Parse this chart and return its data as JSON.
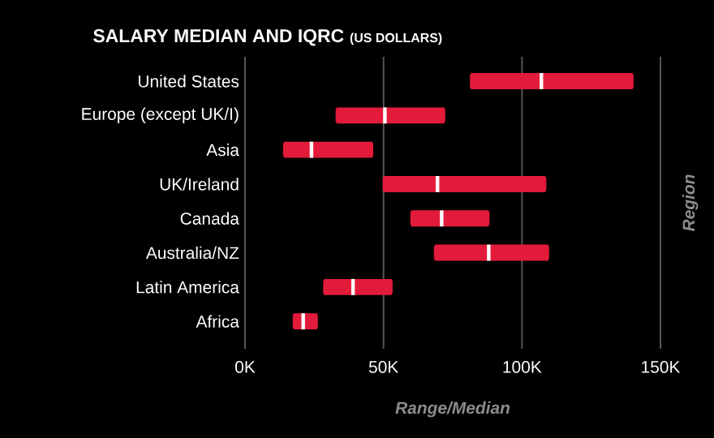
{
  "chart_data": {
    "type": "box",
    "orientation": "horizontal",
    "title": "SALARY MEDIAN AND IQRC",
    "subtitle": "(US DOLLARS)",
    "xlabel": "Range/Median",
    "ylabel": "Region",
    "grid": "x",
    "color": "#e31b3b",
    "categories": [
      "United States",
      "Europe (except UK/I)",
      "Asia",
      "UK/Ireland",
      "Canada",
      "Australia/NZ",
      "Latin America",
      "Africa"
    ],
    "boxes": [
      {
        "low": 81500,
        "q1": 81500,
        "median": 107000,
        "q3": 140000,
        "high": 140000
      },
      {
        "low": 33000,
        "q1": 33000,
        "median": 50500,
        "q3": 72000,
        "high": 72000
      },
      {
        "low": 14000,
        "q1": 14000,
        "median": 24000,
        "q3": 46000,
        "high": 46000
      },
      {
        "low": 50000,
        "q1": 50000,
        "median": 69500,
        "q3": 108500,
        "high": 108500
      },
      {
        "low": 60000,
        "q1": 60000,
        "median": 71000,
        "q3": 88000,
        "high": 88000
      },
      {
        "low": 68500,
        "q1": 68500,
        "median": 88000,
        "q3": 109500,
        "high": 109500
      },
      {
        "low": 28500,
        "q1": 28500,
        "median": 39000,
        "q3": 53000,
        "high": 53000
      },
      {
        "low": 17500,
        "q1": 17500,
        "median": 21000,
        "q3": 26000,
        "high": 26000
      }
    ],
    "xlim": [
      0,
      150000
    ],
    "xticks": [
      {
        "value": 0,
        "label": "0K"
      },
      {
        "value": 50000,
        "label": "50K"
      },
      {
        "value": 100000,
        "label": "100K"
      },
      {
        "value": 150000,
        "label": "150K"
      }
    ]
  }
}
